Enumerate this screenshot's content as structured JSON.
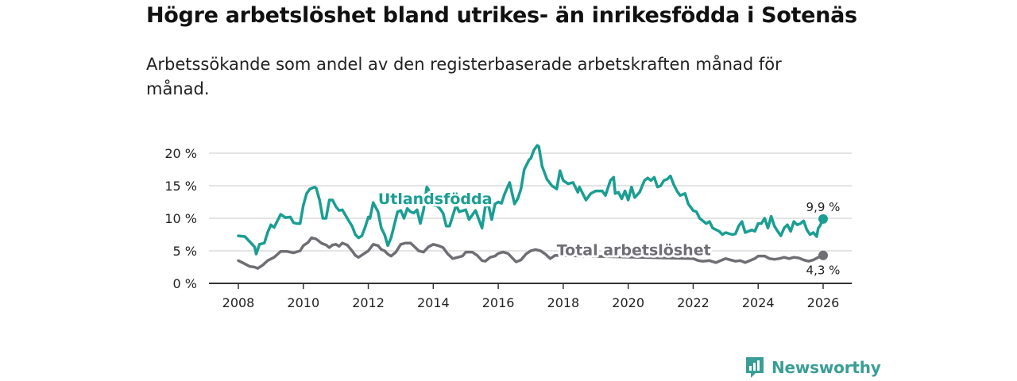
{
  "title": "Högre arbetslöshet bland utrikes- än inrikesfödda i Sotenäs",
  "subtitle": "Arbetssökande som andel av den registerbaserade arbetskraften månad för månad.",
  "brand": {
    "name": "Newsworthy",
    "icon": "newsworthy-logo-icon"
  },
  "colors": {
    "foreign_born": "#1a9e93",
    "total": "#6e6e74",
    "grid": "#dcdcdc",
    "axis": "#333333"
  },
  "chart_data": {
    "type": "line",
    "title": "Högre arbetslöshet bland utrikes- än inrikesfödda i Sotenäs",
    "xlabel": "",
    "ylabel": "",
    "xlim": [
      2007.5,
      2026.4
    ],
    "ylim": [
      0,
      20
    ],
    "grid": true,
    "y_ticks": [
      {
        "value": 0,
        "label": "0 %"
      },
      {
        "value": 5,
        "label": "5 %"
      },
      {
        "value": 10,
        "label": "10 %"
      },
      {
        "value": 15,
        "label": "15 %"
      },
      {
        "value": 20,
        "label": "20 %"
      }
    ],
    "x_ticks": [
      {
        "value": 2008,
        "label": "2008"
      },
      {
        "value": 2010,
        "label": "2010"
      },
      {
        "value": 2012,
        "label": "2012"
      },
      {
        "value": 2014,
        "label": "2014"
      },
      {
        "value": 2016,
        "label": "2016"
      },
      {
        "value": 2018,
        "label": "2018"
      },
      {
        "value": 2020,
        "label": "2020"
      },
      {
        "value": 2022,
        "label": "2022"
      },
      {
        "value": 2024,
        "label": "2024"
      },
      {
        "value": 2026,
        "label": "2026"
      }
    ],
    "series": [
      {
        "name": "Utlandsfödda",
        "color": "#1a9e93",
        "last_value_label": "9,9 %",
        "points": [
          [
            2008.0,
            7.3
          ],
          [
            2008.2,
            7.2
          ],
          [
            2008.35,
            6.4
          ],
          [
            2008.5,
            5.6
          ],
          [
            2008.55,
            4.5
          ],
          [
            2008.65,
            6.0
          ],
          [
            2008.8,
            6.2
          ],
          [
            2008.9,
            7.8
          ],
          [
            2009.0,
            9.0
          ],
          [
            2009.1,
            8.6
          ],
          [
            2009.3,
            10.6
          ],
          [
            2009.45,
            10.1
          ],
          [
            2009.6,
            10.2
          ],
          [
            2009.7,
            9.3
          ],
          [
            2009.8,
            9.2
          ],
          [
            2009.9,
            9.2
          ],
          [
            2010.0,
            12.0
          ],
          [
            2010.1,
            13.8
          ],
          [
            2010.2,
            14.5
          ],
          [
            2010.35,
            14.8
          ],
          [
            2010.4,
            14.6
          ],
          [
            2010.5,
            12.8
          ],
          [
            2010.6,
            10.0
          ],
          [
            2010.7,
            10.0
          ],
          [
            2010.8,
            12.8
          ],
          [
            2010.9,
            12.8
          ],
          [
            2011.0,
            11.8
          ],
          [
            2011.1,
            11.2
          ],
          [
            2011.2,
            11.3
          ],
          [
            2011.4,
            9.6
          ],
          [
            2011.5,
            8.8
          ],
          [
            2011.6,
            7.5
          ],
          [
            2011.7,
            7.0
          ],
          [
            2011.8,
            7.3
          ],
          [
            2011.9,
            8.6
          ],
          [
            2012.0,
            10.2
          ],
          [
            2012.05,
            10.0
          ],
          [
            2012.15,
            12.4
          ],
          [
            2012.3,
            11.0
          ],
          [
            2012.4,
            8.5
          ],
          [
            2012.5,
            7.5
          ],
          [
            2012.6,
            5.8
          ],
          [
            2012.7,
            7.0
          ],
          [
            2012.8,
            9.0
          ],
          [
            2012.9,
            11.0
          ],
          [
            2013.0,
            11.2
          ],
          [
            2013.1,
            10.0
          ],
          [
            2013.2,
            11.5
          ],
          [
            2013.3,
            11.0
          ],
          [
            2013.4,
            10.8
          ],
          [
            2013.5,
            11.3
          ],
          [
            2013.6,
            9.2
          ],
          [
            2013.7,
            11.3
          ],
          [
            2013.8,
            14.8
          ],
          [
            2013.9,
            14.0
          ],
          [
            2014.0,
            12.0
          ],
          [
            2014.1,
            12.0
          ],
          [
            2014.2,
            11.5
          ],
          [
            2014.3,
            10.8
          ],
          [
            2014.4,
            8.8
          ],
          [
            2014.5,
            8.8
          ],
          [
            2014.7,
            12.0
          ],
          [
            2014.8,
            11.0
          ],
          [
            2015.0,
            11.3
          ],
          [
            2015.1,
            9.8
          ],
          [
            2015.3,
            11.2
          ],
          [
            2015.5,
            8.5
          ],
          [
            2015.6,
            11.8
          ],
          [
            2015.7,
            12.0
          ],
          [
            2015.8,
            9.8
          ],
          [
            2015.9,
            12.2
          ],
          [
            2016.0,
            12.5
          ],
          [
            2016.1,
            12.3
          ],
          [
            2016.2,
            13.8
          ],
          [
            2016.35,
            15.5
          ],
          [
            2016.5,
            12.2
          ],
          [
            2016.6,
            13.0
          ],
          [
            2016.7,
            14.5
          ],
          [
            2016.8,
            17.5
          ],
          [
            2016.95,
            19.0
          ],
          [
            2017.0,
            19.2
          ],
          [
            2017.1,
            20.5
          ],
          [
            2017.2,
            21.2
          ],
          [
            2017.25,
            21.0
          ],
          [
            2017.35,
            18.0
          ],
          [
            2017.5,
            16.0
          ],
          [
            2017.65,
            15.0
          ],
          [
            2017.8,
            14.5
          ],
          [
            2017.9,
            17.3
          ],
          [
            2018.0,
            15.8
          ],
          [
            2018.15,
            15.3
          ],
          [
            2018.3,
            15.5
          ],
          [
            2018.45,
            14.0
          ],
          [
            2018.5,
            14.8
          ],
          [
            2018.7,
            12.8
          ],
          [
            2018.85,
            13.8
          ],
          [
            2019.0,
            14.2
          ],
          [
            2019.2,
            14.2
          ],
          [
            2019.3,
            13.5
          ],
          [
            2019.45,
            15.8
          ],
          [
            2019.55,
            16.3
          ],
          [
            2019.6,
            13.8
          ],
          [
            2019.7,
            14.0
          ],
          [
            2019.8,
            13.0
          ],
          [
            2019.9,
            14.2
          ],
          [
            2020.0,
            12.8
          ],
          [
            2020.1,
            14.8
          ],
          [
            2020.2,
            13.2
          ],
          [
            2020.35,
            14.0
          ],
          [
            2020.5,
            15.8
          ],
          [
            2020.6,
            16.2
          ],
          [
            2020.7,
            15.8
          ],
          [
            2020.8,
            16.3
          ],
          [
            2020.9,
            14.8
          ],
          [
            2021.0,
            15.0
          ],
          [
            2021.1,
            15.8
          ],
          [
            2021.2,
            16.0
          ],
          [
            2021.3,
            16.5
          ],
          [
            2021.4,
            15.2
          ],
          [
            2021.5,
            14.2
          ],
          [
            2021.6,
            13.5
          ],
          [
            2021.75,
            13.8
          ],
          [
            2021.85,
            12.2
          ],
          [
            2022.0,
            11.2
          ],
          [
            2022.1,
            11.0
          ],
          [
            2022.2,
            10.0
          ],
          [
            2022.4,
            9.2
          ],
          [
            2022.5,
            9.5
          ],
          [
            2022.6,
            8.5
          ],
          [
            2022.8,
            8.0
          ],
          [
            2022.9,
            7.5
          ],
          [
            2023.0,
            7.8
          ],
          [
            2023.2,
            7.5
          ],
          [
            2023.3,
            7.6
          ],
          [
            2023.4,
            8.8
          ],
          [
            2023.5,
            9.5
          ],
          [
            2023.6,
            7.8
          ],
          [
            2023.8,
            8.2
          ],
          [
            2023.9,
            8.0
          ],
          [
            2024.0,
            9.2
          ],
          [
            2024.1,
            9.2
          ],
          [
            2024.2,
            10.0
          ],
          [
            2024.3,
            8.5
          ],
          [
            2024.4,
            10.3
          ],
          [
            2024.5,
            8.8
          ],
          [
            2024.6,
            8.0
          ],
          [
            2024.7,
            7.3
          ],
          [
            2024.8,
            8.5
          ],
          [
            2024.9,
            9.0
          ],
          [
            2025.0,
            8.0
          ],
          [
            2025.1,
            9.5
          ],
          [
            2025.2,
            9.0
          ],
          [
            2025.3,
            9.2
          ],
          [
            2025.4,
            9.6
          ],
          [
            2025.5,
            8.2
          ],
          [
            2025.6,
            7.5
          ],
          [
            2025.7,
            7.8
          ],
          [
            2025.8,
            7.2
          ],
          [
            2025.85,
            8.5
          ],
          [
            2025.9,
            8.8
          ],
          [
            2026.0,
            9.9
          ]
        ]
      },
      {
        "name": "Total arbetslöshet",
        "color": "#6e6e74",
        "last_value_label": "4,3 %",
        "points": [
          [
            2008.0,
            3.5
          ],
          [
            2008.2,
            3.0
          ],
          [
            2008.35,
            2.6
          ],
          [
            2008.5,
            2.5
          ],
          [
            2008.6,
            2.3
          ],
          [
            2008.75,
            2.8
          ],
          [
            2008.9,
            3.5
          ],
          [
            2009.1,
            4.0
          ],
          [
            2009.3,
            4.9
          ],
          [
            2009.5,
            4.9
          ],
          [
            2009.7,
            4.7
          ],
          [
            2009.9,
            5.0
          ],
          [
            2010.0,
            5.8
          ],
          [
            2010.15,
            6.3
          ],
          [
            2010.25,
            7.0
          ],
          [
            2010.4,
            6.8
          ],
          [
            2010.55,
            6.2
          ],
          [
            2010.7,
            5.9
          ],
          [
            2010.8,
            5.5
          ],
          [
            2010.9,
            5.9
          ],
          [
            2011.0,
            6.0
          ],
          [
            2011.1,
            5.7
          ],
          [
            2011.2,
            6.2
          ],
          [
            2011.35,
            5.9
          ],
          [
            2011.5,
            5.0
          ],
          [
            2011.6,
            4.3
          ],
          [
            2011.7,
            4.0
          ],
          [
            2011.85,
            4.5
          ],
          [
            2012.0,
            5.0
          ],
          [
            2012.15,
            6.0
          ],
          [
            2012.3,
            5.8
          ],
          [
            2012.4,
            5.2
          ],
          [
            2012.5,
            5.0
          ],
          [
            2012.6,
            4.5
          ],
          [
            2012.7,
            4.2
          ],
          [
            2012.85,
            4.8
          ],
          [
            2013.0,
            6.0
          ],
          [
            2013.15,
            6.2
          ],
          [
            2013.3,
            6.2
          ],
          [
            2013.45,
            5.5
          ],
          [
            2013.55,
            5.0
          ],
          [
            2013.7,
            4.8
          ],
          [
            2013.85,
            5.6
          ],
          [
            2014.0,
            6.0
          ],
          [
            2014.15,
            5.8
          ],
          [
            2014.3,
            5.5
          ],
          [
            2014.45,
            4.5
          ],
          [
            2014.6,
            3.8
          ],
          [
            2014.75,
            4.0
          ],
          [
            2014.9,
            4.2
          ],
          [
            2015.0,
            4.8
          ],
          [
            2015.2,
            4.8
          ],
          [
            2015.35,
            4.3
          ],
          [
            2015.5,
            3.5
          ],
          [
            2015.6,
            3.4
          ],
          [
            2015.75,
            4.0
          ],
          [
            2015.9,
            4.2
          ],
          [
            2016.0,
            4.6
          ],
          [
            2016.15,
            4.8
          ],
          [
            2016.3,
            4.6
          ],
          [
            2016.45,
            3.8
          ],
          [
            2016.55,
            3.3
          ],
          [
            2016.7,
            3.6
          ],
          [
            2016.85,
            4.5
          ],
          [
            2017.0,
            5.0
          ],
          [
            2017.15,
            5.2
          ],
          [
            2017.3,
            5.0
          ],
          [
            2017.45,
            4.5
          ],
          [
            2017.6,
            3.8
          ],
          [
            2017.75,
            4.3
          ],
          [
            2022.0,
            3.8
          ],
          [
            2022.15,
            3.5
          ],
          [
            2022.3,
            3.4
          ],
          [
            2022.5,
            3.5
          ],
          [
            2022.7,
            3.2
          ],
          [
            2022.85,
            3.5
          ],
          [
            2023.0,
            3.8
          ],
          [
            2023.15,
            3.6
          ],
          [
            2023.3,
            3.4
          ],
          [
            2023.45,
            3.5
          ],
          [
            2023.6,
            3.2
          ],
          [
            2023.75,
            3.5
          ],
          [
            2023.9,
            3.8
          ],
          [
            2024.0,
            4.2
          ],
          [
            2024.2,
            4.2
          ],
          [
            2024.35,
            3.8
          ],
          [
            2024.5,
            3.7
          ],
          [
            2024.65,
            3.8
          ],
          [
            2024.8,
            4.0
          ],
          [
            2024.95,
            3.8
          ],
          [
            2025.1,
            4.0
          ],
          [
            2025.25,
            3.9
          ],
          [
            2025.4,
            3.6
          ],
          [
            2025.55,
            3.4
          ],
          [
            2025.7,
            3.6
          ],
          [
            2025.85,
            4.0
          ],
          [
            2026.0,
            4.3
          ]
        ]
      }
    ],
    "annotations": [
      {
        "series": "Utlandsfödda",
        "text": "Utlandsfödda"
      },
      {
        "series": "Total arbetslöshet",
        "text": "Total arbetslöshet"
      }
    ]
  }
}
